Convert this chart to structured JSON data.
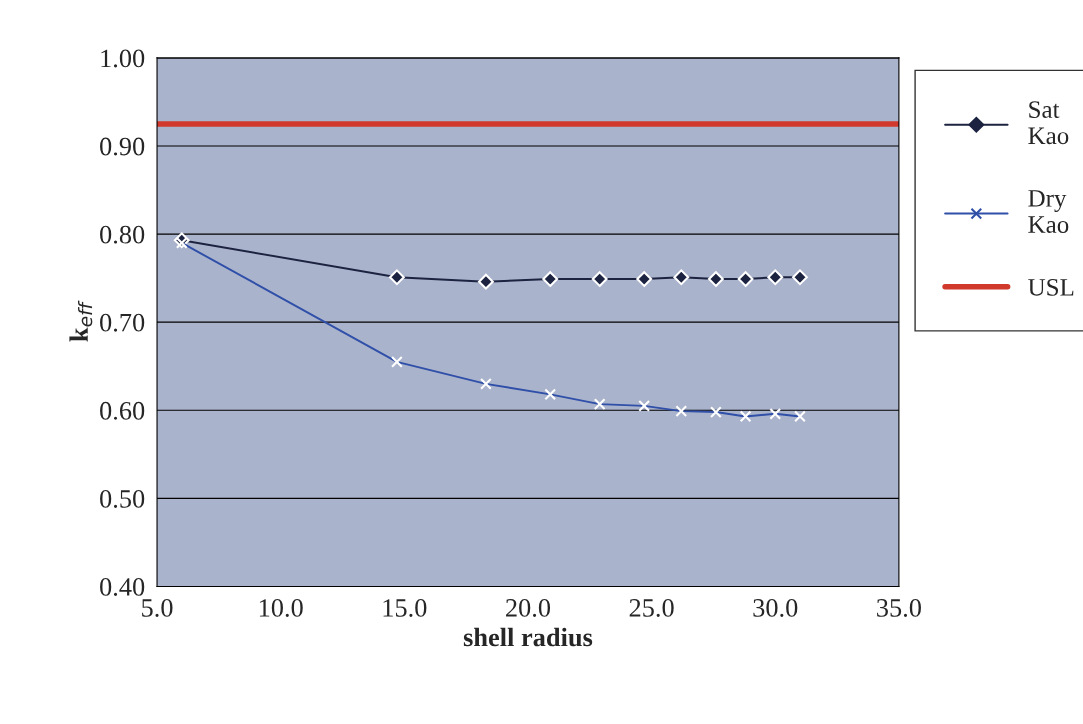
{
  "chart_data": {
    "type": "line",
    "xlabel": "shell radius",
    "ylabel": "k$_{eff}$",
    "x": [
      6.0,
      14.7,
      18.3,
      20.9,
      22.9,
      24.7,
      26.2,
      27.6,
      28.8,
      30.0,
      31.0
    ],
    "series": [
      {
        "name": "Sat\nKao",
        "color": "#1c2340",
        "marker": "diamond",
        "values": [
          0.793,
          0.751,
          0.746,
          0.749,
          0.749,
          0.749,
          0.751,
          0.749,
          0.749,
          0.751,
          0.751
        ]
      },
      {
        "name": "Dry\nKao",
        "color": "#2f4fa8",
        "marker": "cross",
        "values": [
          0.79,
          0.655,
          0.63,
          0.618,
          0.607,
          0.605,
          0.599,
          0.598,
          0.593,
          0.596,
          0.593
        ]
      },
      {
        "name": "USL",
        "color": "#d0392b",
        "marker": "none",
        "x": [
          5.0,
          35.0
        ],
        "values": [
          0.925,
          0.925
        ]
      }
    ],
    "xlim": [
      5.0,
      35.0
    ],
    "xticks": [
      {
        "value": 5,
        "label": "5.0"
      },
      {
        "value": 10,
        "label": "10.0"
      },
      {
        "value": 15,
        "label": "15.0"
      },
      {
        "value": 20,
        "label": "20.0"
      },
      {
        "value": 25,
        "label": "25.0"
      },
      {
        "value": 30,
        "label": "30.0"
      },
      {
        "value": 35,
        "label": "35.0"
      }
    ],
    "ylim": [
      0.4,
      1.0
    ],
    "yticks": [
      {
        "value": 0.4,
        "label": "0.40"
      },
      {
        "value": 0.5,
        "label": "0.50"
      },
      {
        "value": 0.6,
        "label": "0.60"
      },
      {
        "value": 0.7,
        "label": "0.70"
      },
      {
        "value": 0.8,
        "label": "0.80"
      },
      {
        "value": 0.9,
        "label": "0.90"
      },
      {
        "value": 1.0,
        "label": "1.00"
      }
    ],
    "grid": "y",
    "legend": "right"
  }
}
